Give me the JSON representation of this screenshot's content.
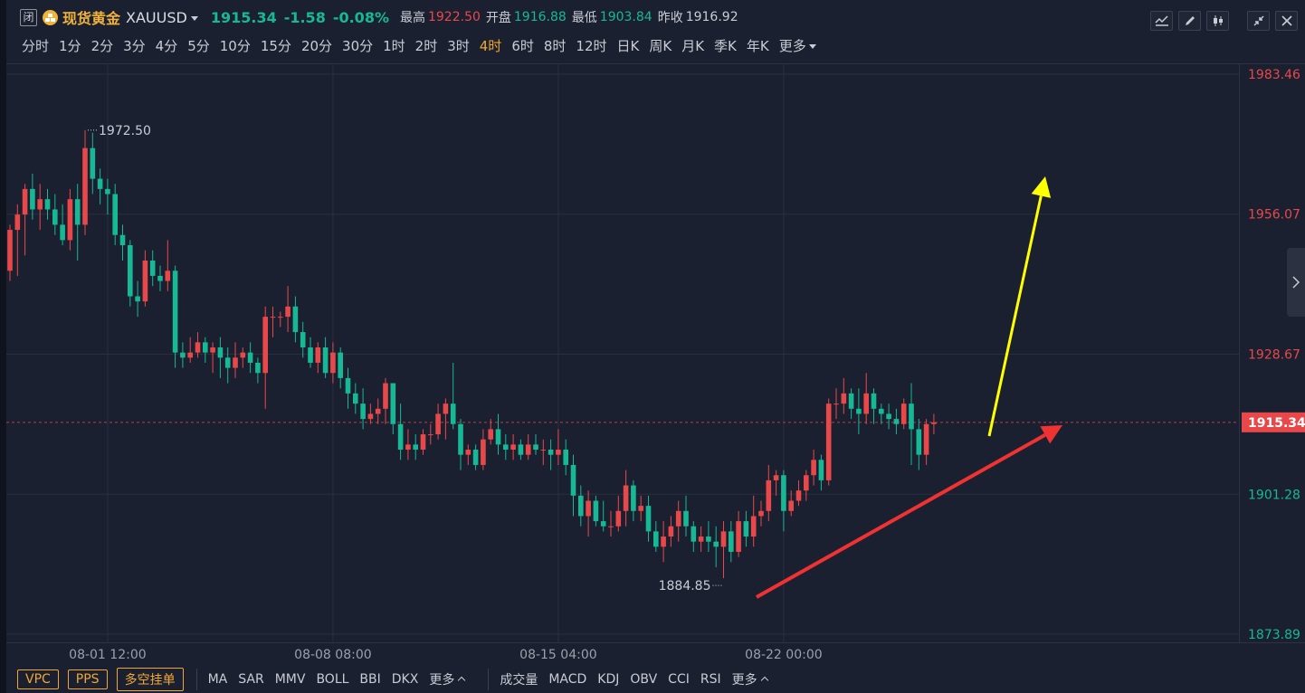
{
  "header": {
    "close_badge": "闭",
    "name_cn": "现货黄金",
    "symbol": "XAUUSD",
    "price": "1915.34",
    "change": "-1.58",
    "change_pct": "-0.08%",
    "high_label": "最高",
    "high_value": "1922.50",
    "open_label": "开盘",
    "open_value": "1916.88",
    "low_label": "最低",
    "low_value": "1903.84",
    "prev_label": "昨收",
    "prev_value": "1916.92"
  },
  "toolbar_icons": [
    "line-chart-icon",
    "draw-pen-icon",
    "candlestick-icon",
    "collapse-icon",
    "close-icon"
  ],
  "periods": {
    "items": [
      "分时",
      "1分",
      "2分",
      "3分",
      "4分",
      "5分",
      "10分",
      "15分",
      "20分",
      "30分",
      "1时",
      "2时",
      "3时",
      "4时",
      "6时",
      "8时",
      "12时",
      "日K",
      "周K",
      "月K",
      "季K",
      "年K"
    ],
    "active": "4时",
    "more": "更多"
  },
  "bottom": {
    "buttons": [
      "VPC",
      "PPS",
      "多空挂单"
    ],
    "main_indicators": [
      "MA",
      "SAR",
      "MMV",
      "BOLL",
      "BBI",
      "DKX"
    ],
    "main_more": "更多",
    "sub_indicators": [
      "成交量",
      "MACD",
      "KDJ",
      "OBV",
      "CCI",
      "RSI"
    ],
    "sub_more": "更多"
  },
  "colors": {
    "up": "#e8484a",
    "down": "#16b895",
    "accent": "#f0a733",
    "background": "#1b2030",
    "arrow_yellow": "#ffff00",
    "arrow_red": "#f03232"
  },
  "chart_data": {
    "type": "candlestick",
    "symbol": "XAUUSD",
    "interval": "4时",
    "y_ticks": [
      "1983.46",
      "1956.07",
      "1928.67",
      "1901.28",
      "1873.89"
    ],
    "ylim": [
      1873.89,
      1983.46
    ],
    "x_ticks": [
      "08-01 12:00",
      "08-08 08:00",
      "08-15 04:00",
      "08-22 00:00"
    ],
    "current_price_label": "1915.34",
    "current_price": 1915.34,
    "max_label": "1972.50",
    "min_label": "1884.85",
    "high_max": 1972.5,
    "low_min": 1884.85,
    "candles_ohlc": [
      [
        1945,
        1953,
        1943,
        1954
      ],
      [
        1953,
        1956,
        1944,
        1958
      ],
      [
        1956,
        1961,
        1948,
        1962
      ],
      [
        1961,
        1957,
        1955,
        1964
      ],
      [
        1957,
        1959,
        1953,
        1962
      ],
      [
        1959,
        1957,
        1955,
        1961
      ],
      [
        1957,
        1954,
        1952,
        1960
      ],
      [
        1954,
        1951,
        1950,
        1958
      ],
      [
        1951,
        1959,
        1949,
        1961
      ],
      [
        1959,
        1954,
        1947,
        1962
      ],
      [
        1954,
        1969,
        1952,
        1972.5
      ],
      [
        1969,
        1963,
        1960,
        1972
      ],
      [
        1963,
        1961,
        1958,
        1965
      ],
      [
        1961,
        1960,
        1956,
        1963
      ],
      [
        1960,
        1952,
        1950,
        1962
      ],
      [
        1952,
        1950,
        1947,
        1954
      ],
      [
        1950,
        1940,
        1938,
        1951
      ],
      [
        1940,
        1939,
        1936,
        1943
      ],
      [
        1939,
        1947,
        1938,
        1949
      ],
      [
        1947,
        1944,
        1942,
        1949
      ],
      [
        1944,
        1943,
        1941,
        1946
      ],
      [
        1943,
        1945,
        1941,
        1951
      ],
      [
        1945,
        1929,
        1926,
        1946
      ],
      [
        1929,
        1928,
        1926,
        1931
      ],
      [
        1928,
        1929,
        1927,
        1932
      ],
      [
        1929,
        1931,
        1928,
        1933
      ],
      [
        1931,
        1929,
        1927,
        1932
      ],
      [
        1929,
        1930,
        1925,
        1931
      ],
      [
        1930,
        1928,
        1924,
        1932
      ],
      [
        1928,
        1926,
        1923,
        1930
      ],
      [
        1926,
        1928,
        1924,
        1931
      ],
      [
        1928,
        1929,
        1926,
        1930
      ],
      [
        1929,
        1927,
        1925,
        1931
      ],
      [
        1927,
        1925,
        1923,
        1928
      ],
      [
        1925,
        1936,
        1918,
        1938
      ],
      [
        1936,
        1936,
        1932,
        1938
      ],
      [
        1936,
        1936,
        1934,
        1937
      ],
      [
        1936,
        1938,
        1933,
        1942
      ],
      [
        1938,
        1933,
        1931,
        1940
      ],
      [
        1933,
        1930,
        1928,
        1935
      ],
      [
        1930,
        1927,
        1926,
        1932
      ],
      [
        1927,
        1930,
        1925,
        1931
      ],
      [
        1930,
        1925,
        1924,
        1932
      ],
      [
        1925,
        1929,
        1923,
        1931
      ],
      [
        1929,
        1924,
        1922,
        1930
      ],
      [
        1924,
        1921,
        1918,
        1926
      ],
      [
        1921,
        1919,
        1917,
        1923
      ],
      [
        1919,
        1916,
        1914,
        1922
      ],
      [
        1916,
        1917,
        1915,
        1919
      ],
      [
        1917,
        1918,
        1915,
        1920
      ],
      [
        1918,
        1923,
        1915,
        1924
      ],
      [
        1923,
        1915,
        1913,
        1923
      ],
      [
        1915,
        1910,
        1908,
        1919
      ],
      [
        1910,
        1911,
        1908,
        1914
      ],
      [
        1911,
        1910,
        1908,
        1913
      ],
      [
        1910,
        1913,
        1909,
        1914
      ],
      [
        1913,
        1913,
        1911,
        1915
      ],
      [
        1913,
        1917,
        1912,
        1919
      ],
      [
        1917,
        1919,
        1912,
        1920
      ],
      [
        1919,
        1915,
        1914,
        1927
      ],
      [
        1915,
        1909,
        1906,
        1916
      ],
      [
        1909,
        1910,
        1907,
        1911
      ],
      [
        1910,
        1907,
        1906,
        1911
      ],
      [
        1907,
        1912,
        1906,
        1914
      ],
      [
        1912,
        1914,
        1911,
        1916
      ],
      [
        1914,
        1911,
        1909,
        1917
      ],
      [
        1911,
        1910,
        1908,
        1913
      ],
      [
        1910,
        1911,
        1908,
        1913
      ],
      [
        1911,
        1909,
        1908,
        1912
      ],
      [
        1909,
        1911,
        1908,
        1913
      ],
      [
        1911,
        1910,
        1909,
        1913
      ],
      [
        1910,
        1910,
        1907,
        1912
      ],
      [
        1910,
        1909,
        1906,
        1912
      ],
      [
        1909,
        1910,
        1907,
        1914
      ],
      [
        1910,
        1907,
        1905,
        1912
      ],
      [
        1907,
        1901,
        1897,
        1909
      ],
      [
        1901,
        1897,
        1895,
        1903
      ],
      [
        1897,
        1900,
        1893,
        1902
      ],
      [
        1900,
        1896,
        1895,
        1901
      ],
      [
        1896,
        1895,
        1894,
        1900
      ],
      [
        1895,
        1895,
        1893,
        1898
      ],
      [
        1895,
        1898,
        1894,
        1901
      ],
      [
        1898,
        1903,
        1895,
        1906
      ],
      [
        1903,
        1898,
        1896,
        1904
      ],
      [
        1898,
        1899,
        1896,
        1901
      ],
      [
        1899,
        1894,
        1892,
        1901
      ],
      [
        1894,
        1891,
        1890,
        1896
      ],
      [
        1891,
        1893,
        1888,
        1896
      ],
      [
        1893,
        1895,
        1891,
        1897
      ],
      [
        1895,
        1898,
        1892,
        1900
      ],
      [
        1898,
        1895,
        1893,
        1901
      ],
      [
        1895,
        1892,
        1890,
        1896
      ],
      [
        1892,
        1893,
        1890,
        1895
      ],
      [
        1893,
        1892,
        1890,
        1896
      ],
      [
        1892,
        1891,
        1887,
        1895
      ],
      [
        1891,
        1894,
        1884.85,
        1896
      ],
      [
        1894,
        1890,
        1888,
        1896
      ],
      [
        1890,
        1896,
        1889,
        1898
      ],
      [
        1896,
        1893,
        1891,
        1898
      ],
      [
        1893,
        1897,
        1891,
        1901
      ],
      [
        1897,
        1898,
        1895,
        1900
      ],
      [
        1898,
        1904,
        1896,
        1907
      ],
      [
        1904,
        1905,
        1901,
        1906
      ],
      [
        1905,
        1898,
        1894,
        1906
      ],
      [
        1898,
        1900,
        1897,
        1902
      ],
      [
        1900,
        1902,
        1899,
        1904
      ],
      [
        1902,
        1905,
        1900,
        1906
      ],
      [
        1905,
        1908,
        1903,
        1910
      ],
      [
        1908,
        1904,
        1902,
        1909
      ],
      [
        1904,
        1919,
        1903,
        1920
      ],
      [
        1919,
        1919,
        1916,
        1922
      ],
      [
        1919,
        1921,
        1917,
        1924
      ],
      [
        1921,
        1918,
        1916,
        1922
      ],
      [
        1918,
        1917,
        1913,
        1922
      ],
      [
        1917,
        1921,
        1915,
        1925
      ],
      [
        1921,
        1918,
        1915,
        1922
      ],
      [
        1918,
        1917,
        1915,
        1919
      ],
      [
        1917,
        1916,
        1914,
        1919
      ],
      [
        1916,
        1915,
        1913,
        1918
      ],
      [
        1915,
        1919,
        1914,
        1920
      ],
      [
        1919,
        1914,
        1907,
        1923
      ],
      [
        1914,
        1909,
        1906,
        1916
      ],
      [
        1909,
        1915,
        1907,
        1916
      ],
      [
        1915,
        1915.34,
        1913,
        1917
      ]
    ]
  }
}
